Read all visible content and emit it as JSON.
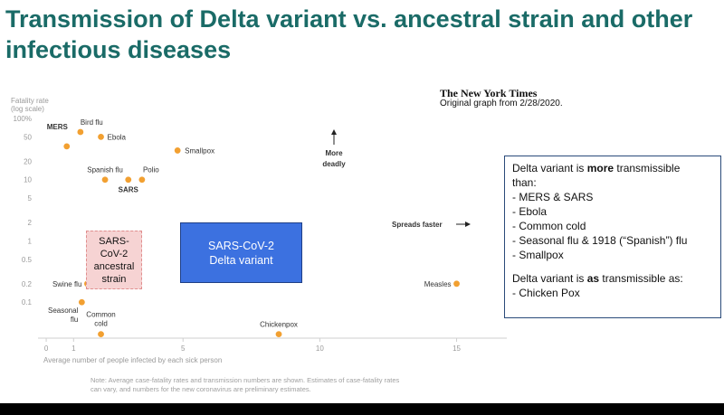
{
  "title": "Transmission of Delta variant vs. ancestral strain and other infectious diseases",
  "source": {
    "logo": "The New York Times",
    "caption": "Original graph from 2/28/2020."
  },
  "chart_data": {
    "type": "scatter",
    "title": "",
    "xlabel": "Average number of people infected by each sick person",
    "ylabel_line1": "Fatality rate",
    "ylabel_line2": "(log scale)",
    "xlim": [
      -0.3,
      17
    ],
    "ylim": [
      0.025,
      100
    ],
    "y_scale": "log",
    "grid": false,
    "x_ticks": [
      {
        "v": 0,
        "label": "0"
      },
      {
        "v": 1,
        "label": "1"
      },
      {
        "v": 5,
        "label": "5"
      },
      {
        "v": 10,
        "label": "10"
      },
      {
        "v": 15,
        "label": "15"
      }
    ],
    "y_ticks": [
      {
        "v": 100,
        "label": "100%"
      },
      {
        "v": 50,
        "label": "50"
      },
      {
        "v": 20,
        "label": "20"
      },
      {
        "v": 10,
        "label": "10"
      },
      {
        "v": 5,
        "label": "5"
      },
      {
        "v": 2,
        "label": "2"
      },
      {
        "v": 1,
        "label": "1"
      },
      {
        "v": 0.5,
        "label": "0.5"
      },
      {
        "v": 0.2,
        "label": "0.2"
      },
      {
        "v": 0.1,
        "label": "0.1"
      }
    ],
    "point_color": "#f2a031",
    "points": [
      {
        "name": "MERS",
        "x": 0.75,
        "y": 35,
        "bold": true
      },
      {
        "name": "Bird flu",
        "x": 1.25,
        "y": 60,
        "bold": false
      },
      {
        "name": "Ebola",
        "x": 2.0,
        "y": 50,
        "bold": false
      },
      {
        "name": "Smallpox",
        "x": 4.8,
        "y": 30,
        "bold": false
      },
      {
        "name": "Spanish flu",
        "x": 2.15,
        "y": 10,
        "bold": false
      },
      {
        "name": "SARS",
        "x": 3.0,
        "y": 10,
        "bold": true
      },
      {
        "name": "Polio",
        "x": 3.5,
        "y": 10,
        "bold": false
      },
      {
        "name": "Swine flu",
        "x": 1.5,
        "y": 0.2,
        "bold": false
      },
      {
        "name": "Seasonal flu",
        "x": 1.3,
        "y": 0.1,
        "bold": false
      },
      {
        "name": "Common cold",
        "x": 2.0,
        "y": 0.03,
        "bold": false
      },
      {
        "name": "Chickenpox",
        "x": 8.5,
        "y": 0.03,
        "bold": false
      },
      {
        "name": "Measles",
        "x": 15.0,
        "y": 0.2,
        "bold": false
      }
    ],
    "annotations": {
      "more_deadly_1": "More",
      "more_deadly_2": "deadly",
      "spreads_faster": "Spreads faster"
    },
    "note_line1": "Note: Average case-fatality rates and transmission numbers are shown. Estimates of case-fatality rates",
    "note_line2": "can vary, and numbers for the new coronavirus are preliminary estimates."
  },
  "overlays": {
    "delta_line1": "SARS-CoV-2",
    "delta_line2": "Delta variant",
    "ancestral_line1": "SARS-",
    "ancestral_line2": "CoV-2",
    "ancestral_line3": "ancestral",
    "ancestral_line4": "strain",
    "delta_color": "#3c71e0",
    "ancestral_color": "#f6d3d3"
  },
  "callout": {
    "line1_pre": "Delta variant is ",
    "line1_bold": "more",
    "line1_post": " transmissible",
    "line2": "than:",
    "more_list": [
      "MERS & SARS",
      "Ebola",
      "Common cold",
      "Seasonal flu & 1918 (“Spanish”) flu",
      "Smallpox"
    ],
    "as_pre": "Delta variant is ",
    "as_bold": "as",
    "as_post": " transmissible as:",
    "as_item": "- Chicken Pox"
  }
}
